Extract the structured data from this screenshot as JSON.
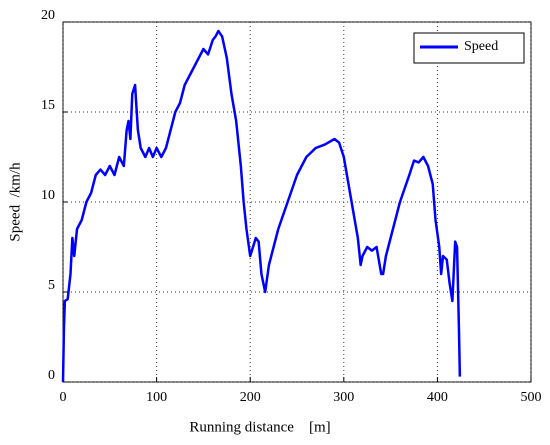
{
  "chart_data": {
    "type": "line",
    "xlabel": "Running distance    [m]",
    "ylabel": "Speed  /km/h",
    "xlim": [
      0,
      500
    ],
    "xticks": [
      0,
      100,
      200,
      300,
      400,
      500
    ],
    "ylim": [
      0,
      20
    ],
    "yticks": [
      0,
      5,
      10,
      15,
      20
    ],
    "grid": true,
    "legend": "upper right",
    "x": [
      0,
      1,
      2,
      5,
      8,
      10,
      12,
      15,
      20,
      25,
      30,
      35,
      40,
      45,
      50,
      55,
      60,
      65,
      68,
      70,
      72,
      74,
      77,
      80,
      83,
      88,
      92,
      96,
      100,
      105,
      110,
      115,
      120,
      125,
      130,
      135,
      140,
      145,
      150,
      155,
      160,
      163,
      166,
      170,
      175,
      180,
      185,
      190,
      193,
      196,
      200,
      203,
      206,
      209,
      212,
      216,
      220,
      225,
      230,
      240,
      250,
      260,
      270,
      280,
      290,
      295,
      300,
      305,
      310,
      315,
      318,
      320,
      325,
      330,
      335,
      340,
      342,
      345,
      350,
      360,
      370,
      375,
      380,
      385,
      390,
      395,
      398,
      402,
      404,
      406,
      410,
      413,
      416,
      419,
      421,
      423,
      424
    ],
    "series": [
      {
        "name": "Speed",
        "color": "#0000ff",
        "values": [
          0,
          3,
          4.5,
          4.6,
          6,
          8,
          7,
          8.5,
          9,
          10,
          10.5,
          11.5,
          11.8,
          11.5,
          12,
          11.5,
          12.5,
          12,
          14,
          14.5,
          13.5,
          16,
          16.5,
          14,
          13,
          12.5,
          13,
          12.5,
          13,
          12.5,
          13,
          14,
          15,
          15.5,
          16.5,
          17,
          17.5,
          18,
          18.5,
          18.2,
          19,
          19.2,
          19.5,
          19.2,
          18,
          16,
          14.5,
          12,
          10,
          8.5,
          7,
          7.5,
          8,
          7.8,
          6,
          5,
          6.5,
          7.5,
          8.5,
          10,
          11.5,
          12.5,
          13,
          13.2,
          13.5,
          13.3,
          12.5,
          11,
          9.5,
          8,
          6.5,
          7,
          7.5,
          7.3,
          7.5,
          6,
          6,
          7,
          8,
          10,
          11.5,
          12.3,
          12.2,
          12.5,
          12,
          11,
          9,
          7.5,
          6,
          7,
          6.8,
          5.5,
          4.5,
          7.8,
          7.5,
          3,
          0.3
        ]
      }
    ]
  }
}
